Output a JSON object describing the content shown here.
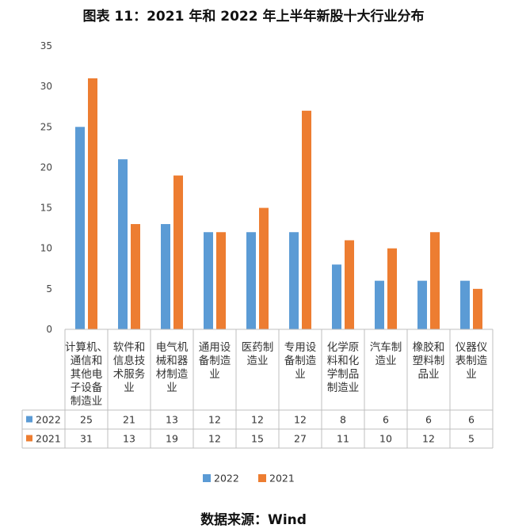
{
  "title": "图表 11：2021 年和 2022 年上半年新股十大行业分布",
  "source": "数据来源：Wind",
  "chart_data": {
    "type": "bar",
    "title": "图表 11：2021 年和 2022 年上半年新股十大行业分布",
    "xlabel": "",
    "ylabel": "",
    "ylim": [
      0,
      35
    ],
    "yticks": [
      0,
      5,
      10,
      15,
      20,
      25,
      30,
      35
    ],
    "grid": false,
    "legend": "bottom",
    "data_table": true,
    "categories": [
      [
        "计算机、",
        "通信和",
        "其他电",
        "子设备",
        "制造业"
      ],
      [
        "软件和",
        "信息技",
        "术服务",
        "业"
      ],
      [
        "电气机",
        "械和器",
        "材制造",
        "业"
      ],
      [
        "通用设",
        "备制造",
        "业"
      ],
      [
        "医药制",
        "造业"
      ],
      [
        "专用设",
        "备制造",
        "业"
      ],
      [
        "化学原",
        "料和化",
        "学制品",
        "制造业"
      ],
      [
        "汽车制",
        "造业"
      ],
      [
        "橡胶和",
        "塑料制",
        "品业"
      ],
      [
        "仪器仪",
        "表制造",
        "业"
      ]
    ],
    "series": [
      {
        "name": "2022",
        "color": "#5b9bd5",
        "values": [
          25,
          21,
          13,
          12,
          12,
          12,
          8,
          6,
          6,
          6
        ]
      },
      {
        "name": "2021",
        "color": "#ed7d31",
        "values": [
          31,
          13,
          19,
          12,
          15,
          27,
          11,
          10,
          12,
          5
        ]
      }
    ]
  }
}
